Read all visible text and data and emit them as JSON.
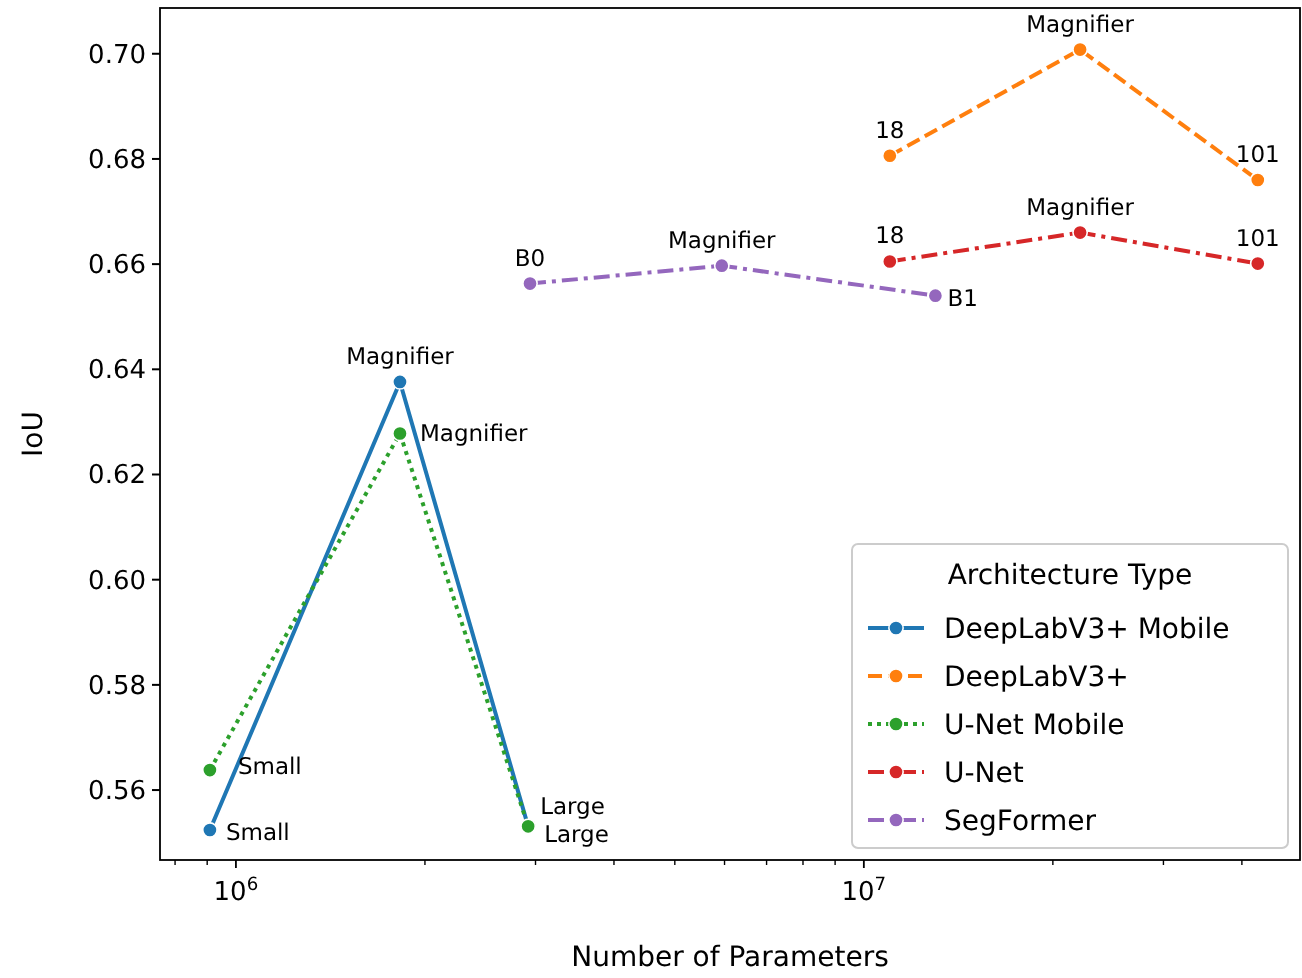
{
  "chart_data": {
    "type": "line",
    "xlabel": "Number of Parameters",
    "ylabel": "IoU",
    "log": "x",
    "marker": "circle",
    "legend": "bottom right",
    "legend_title": "Architecture Type",
    "xlim": [
      757000,
      49500000
    ],
    "ylim": [
      0.5467,
      0.7087
    ],
    "xticks": [
      {
        "value": 800000,
        "label": null
      },
      {
        "value": 900000,
        "label": null
      },
      {
        "value": 1000000,
        "label": "10$^{6}$"
      },
      {
        "value": 2000000,
        "label": null
      },
      {
        "value": 3000000,
        "label": null
      },
      {
        "value": 4000000,
        "label": null
      },
      {
        "value": 5000000,
        "label": null
      },
      {
        "value": 6000000,
        "label": null
      },
      {
        "value": 7000000,
        "label": null
      },
      {
        "value": 8000000,
        "label": null
      },
      {
        "value": 9000000,
        "label": null
      },
      {
        "value": 10000000,
        "label": "10$^{7}$"
      },
      {
        "value": 20000000,
        "label": null
      },
      {
        "value": 30000000,
        "label": null
      },
      {
        "value": 40000000,
        "label": null
      }
    ],
    "yticks": [
      {
        "value": 0.56,
        "label": "0.56"
      },
      {
        "value": 0.58,
        "label": "0.58"
      },
      {
        "value": 0.6,
        "label": "0.60"
      },
      {
        "value": 0.62,
        "label": "0.62"
      },
      {
        "value": 0.64,
        "label": "0.64"
      },
      {
        "value": 0.66,
        "label": "0.66"
      },
      {
        "value": 0.68,
        "label": "0.68"
      },
      {
        "value": 0.7,
        "label": "0.70"
      }
    ],
    "series": [
      {
        "name": "DeepLabV3+ Mobile",
        "color": "#1f77b4",
        "line_style": "solid",
        "x": [
          909000,
          1825000,
          2920000
        ],
        "values": [
          0.5524,
          0.6376,
          0.5531
        ]
      },
      {
        "name": "DeepLabV3+",
        "color": "#ff7f0e",
        "line_style": "dashed",
        "x": [
          11000000,
          22100000,
          42400000
        ],
        "values": [
          0.6806,
          0.7008,
          0.676
        ]
      },
      {
        "name": "U-Net Mobile",
        "color": "#2ca02c",
        "line_style": "dotted",
        "x": [
          909000,
          1825000,
          2920000
        ],
        "values": [
          0.5638,
          0.6278,
          0.5531
        ]
      },
      {
        "name": "U-Net",
        "color": "#d62728",
        "line_style": "dashdot",
        "x": [
          11000000,
          22100000,
          42400000
        ],
        "values": [
          0.6605,
          0.666,
          0.6601
        ]
      },
      {
        "name": "SegFormer",
        "color": "#9467bd",
        "line_style": "dashdot",
        "x": [
          2940000,
          5940000,
          13000000
        ],
        "values": [
          0.6563,
          0.6597,
          0.654
        ]
      }
    ],
    "annotations": [
      {
        "text": "Small",
        "x": 909000,
        "y": 0.5524
      },
      {
        "text": "Magnifier",
        "x": 1825000,
        "y": 0.6376
      },
      {
        "text": "Large",
        "x": 2920000,
        "y": 0.5531
      },
      {
        "text": "18",
        "x": 11000000,
        "y": 0.6806
      },
      {
        "text": "Magnifier",
        "x": 22100000,
        "y": 0.7008
      },
      {
        "text": "101",
        "x": 42400000,
        "y": 0.676
      },
      {
        "text": "Small",
        "x": 909000,
        "y": 0.5638
      },
      {
        "text": "Magnifier",
        "x": 1825000,
        "y": 0.6278
      },
      {
        "text": "Large",
        "x": 2920000,
        "y": 0.5531
      },
      {
        "text": "18",
        "x": 11000000,
        "y": 0.6605
      },
      {
        "text": "Magnifier",
        "x": 22100000,
        "y": 0.666
      },
      {
        "text": "101",
        "x": 42400000,
        "y": 0.6601
      },
      {
        "text": "B0",
        "x": 2940000,
        "y": 0.6563
      },
      {
        "text": "Magnifier",
        "x": 5940000,
        "y": 0.6597
      },
      {
        "text": "B1",
        "x": 13000000,
        "y": 0.654
      }
    ]
  }
}
